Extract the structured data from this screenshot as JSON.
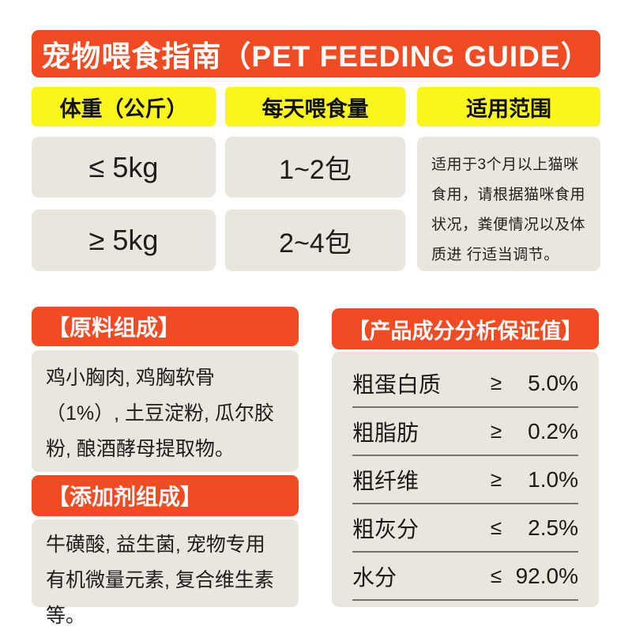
{
  "title": "宠物喂食指南（PET FEEDING GUIDE）",
  "feeding_table": {
    "headers": [
      "体重（公斤）",
      "每天喂食量",
      "适用范围"
    ],
    "rows": [
      {
        "weight": "≤ 5kg",
        "amount": "1~2包"
      },
      {
        "weight": "≥ 5kg",
        "amount": "2~4包"
      }
    ],
    "scope_note": "适用于3个月以上猫咪食用，请根据猫咪食用状况，粪便情况以及体质进 行适当调节。"
  },
  "ingredients": {
    "title": "【原料组成】",
    "body": "鸡小胸肉, 鸡胸软骨（1%）, 土豆淀粉, 瓜尔胶粉, 酿酒酵母提取物。"
  },
  "additives": {
    "title": "【添加剂组成】",
    "body": "牛磺酸, 益生菌, 宠物专用有机微量元素, 复合维生素等。"
  },
  "analysis": {
    "title": "【产品成分分析保证值】",
    "rows": [
      {
        "name": "粗蛋白质",
        "op": "≥",
        "value": "5.0%"
      },
      {
        "name": "粗脂肪",
        "op": "≥",
        "value": "0.2%"
      },
      {
        "name": "粗纤维",
        "op": "≥",
        "value": "1.0%"
      },
      {
        "name": "粗灰分",
        "op": "≤",
        "value": "2.5%"
      },
      {
        "name": "水分",
        "op": "≤",
        "value": "92.0%"
      }
    ]
  },
  "colors": {
    "accent_orange": "#F04B23",
    "header_yellow": "#FAF619",
    "cell_beige": "#E9E6DE",
    "text": "#1E1D1B"
  }
}
